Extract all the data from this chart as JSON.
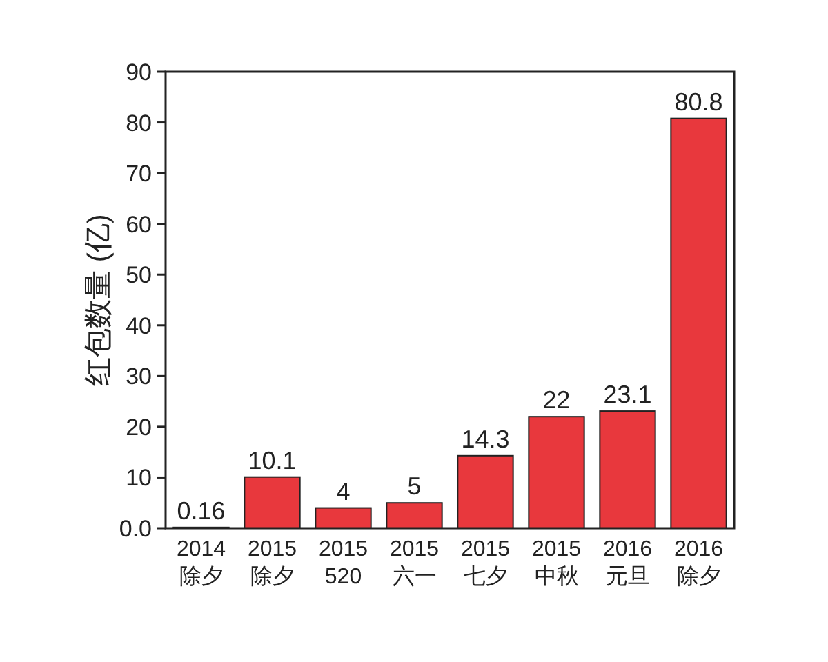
{
  "chart_data": {
    "type": "bar",
    "ylabel": "红包数量 (亿)",
    "categories": [
      "2014\n除夕",
      "2015\n除夕",
      "2015\n520",
      "2015\n六一",
      "2015\n七夕",
      "2015\n中秋",
      "2016\n元旦",
      "2016\n除夕"
    ],
    "values": [
      0.16,
      10.1,
      4,
      5,
      14.3,
      22,
      23.1,
      80.8
    ],
    "color": "#e8383d",
    "ylim": [
      0,
      90
    ],
    "yticks": [
      {
        "value": 0,
        "label": "0.0"
      },
      10,
      20,
      30,
      40,
      50,
      60,
      70,
      80,
      90
    ],
    "data_labels": true
  }
}
